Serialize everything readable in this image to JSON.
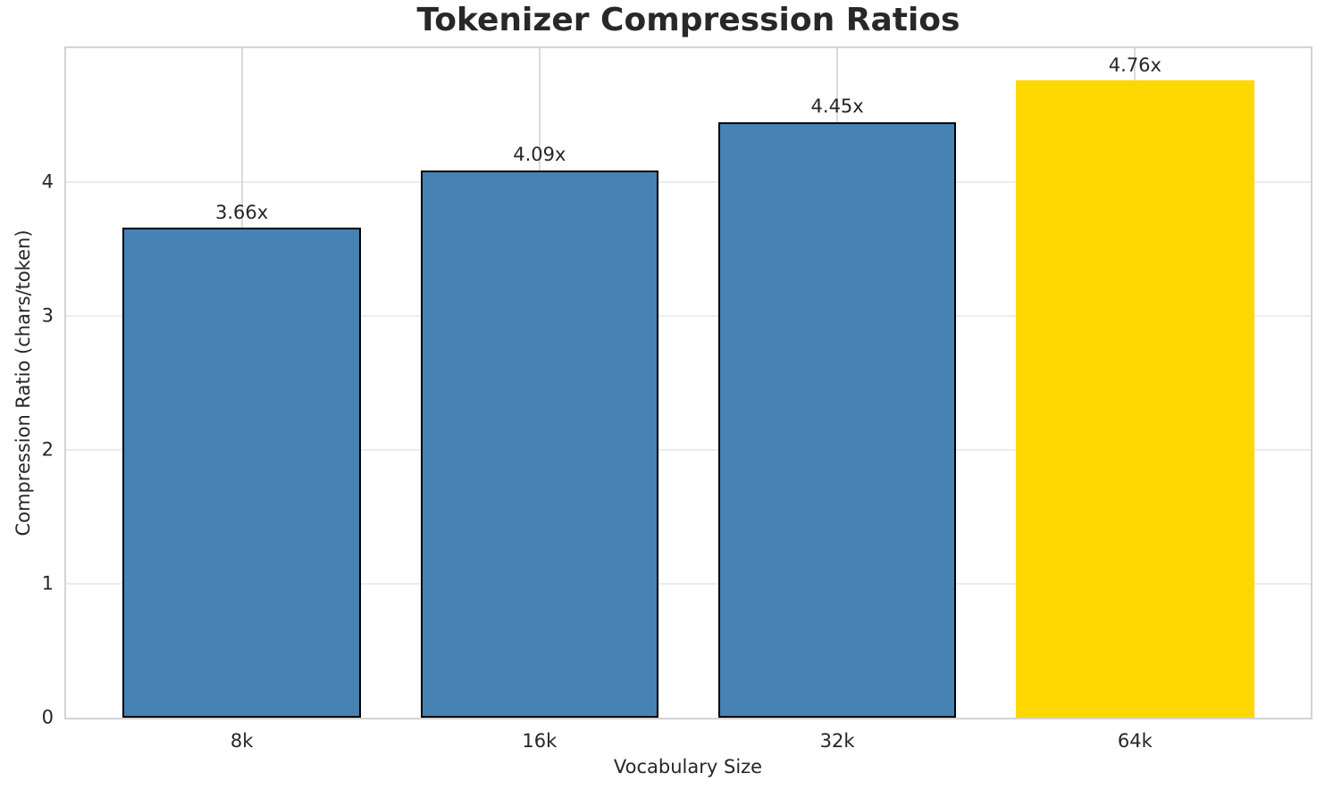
{
  "chart_data": {
    "type": "bar",
    "title": "Tokenizer Compression Ratios",
    "xlabel": "Vocabulary Size",
    "ylabel": "Compression Ratio (chars/token)",
    "categories": [
      "8k",
      "16k",
      "32k",
      "64k"
    ],
    "values": [
      3.66,
      4.09,
      4.45,
      4.76
    ],
    "bar_labels": [
      "3.66x",
      "4.09x",
      "4.45x",
      "4.76x"
    ],
    "yticks": [
      0,
      1,
      2,
      3,
      4
    ],
    "ylim": [
      0,
      5.0
    ],
    "grid": "both",
    "legend_position": "none",
    "highlight_index": 3,
    "colors": {
      "bar": "#4682B4",
      "bar_highlight": "#FFD700",
      "bar_edge": "#000000",
      "grid_horizontal": "#ececec",
      "grid_vertical": "#dbdbdb",
      "spine": "#d3d3d3",
      "text": "#262626",
      "title": "#282828"
    }
  }
}
